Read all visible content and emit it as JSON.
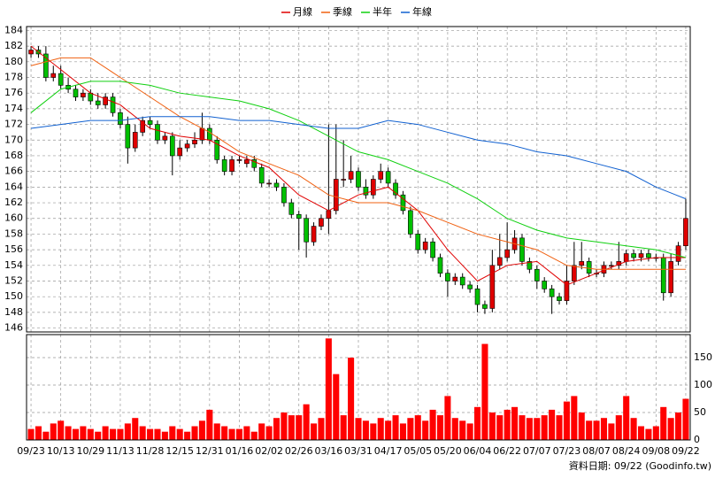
{
  "chart_data": {
    "type": "candlestick",
    "legend_position": "top",
    "xlim": [
      -0.6,
      88.6
    ],
    "xticks": [
      {
        "value": 0,
        "label": "09/23"
      },
      {
        "value": 4,
        "label": "10/13"
      },
      {
        "value": 8,
        "label": "10/29"
      },
      {
        "value": 12,
        "label": "11/13"
      },
      {
        "value": 16,
        "label": "11/28"
      },
      {
        "value": 20,
        "label": "12/15"
      },
      {
        "value": 24,
        "label": "12/31"
      },
      {
        "value": 28,
        "label": "01/16"
      },
      {
        "value": 32,
        "label": "02/02"
      },
      {
        "value": 36,
        "label": "02/26"
      },
      {
        "value": 40,
        "label": "03/16"
      },
      {
        "value": 44,
        "label": "03/31"
      },
      {
        "value": 48,
        "label": "04/17"
      },
      {
        "value": 52,
        "label": "05/05"
      },
      {
        "value": 56,
        "label": "05/20"
      },
      {
        "value": 60,
        "label": "06/04"
      },
      {
        "value": 64,
        "label": "06/22"
      },
      {
        "value": 68,
        "label": "07/07"
      },
      {
        "value": 72,
        "label": "07/23"
      },
      {
        "value": 76,
        "label": "08/07"
      },
      {
        "value": 80,
        "label": "08/24"
      },
      {
        "value": 84,
        "label": "09/08"
      },
      {
        "value": 88,
        "label": "09/22"
      }
    ],
    "ylim": [
      145.5,
      184.5
    ],
    "yticks": [
      146,
      148,
      150,
      152,
      154,
      156,
      158,
      160,
      162,
      164,
      166,
      168,
      170,
      172,
      174,
      176,
      178,
      180,
      182,
      184
    ],
    "y2lim": [
      0,
      192
    ],
    "y2ticks": [
      0,
      50,
      100,
      150
    ],
    "grid": true,
    "up_color": "#e00000",
    "down_color": "#00c000",
    "volume_color": "#ff0000",
    "open": [
      181,
      181.5,
      181,
      178,
      178.5,
      177,
      176.5,
      175.5,
      176,
      175,
      174.5,
      175.5,
      173.5,
      172,
      169,
      171,
      172.5,
      172,
      170,
      170.5,
      168,
      169,
      169.5,
      170,
      171.5,
      170,
      167.5,
      166,
      167.5,
      167,
      167.5,
      166.5,
      164.5,
      164.5,
      164,
      162,
      160.5,
      160,
      157,
      159,
      160,
      161,
      165,
      165,
      166,
      164,
      163,
      165,
      166,
      164.5,
      163,
      161,
      158,
      156,
      157,
      155,
      153,
      152,
      152.5,
      151.5,
      151,
      149,
      148.5,
      154,
      155,
      156,
      157.5,
      154.5,
      153.5,
      152,
      151,
      150,
      149.5,
      152,
      154,
      154.5,
      153,
      153,
      154,
      154,
      154.5,
      155.5,
      155,
      155.5,
      155,
      155,
      150.5,
      154.5,
      156.5
    ],
    "high": [
      182,
      182,
      182,
      179.5,
      179.5,
      178,
      177,
      176.5,
      176.5,
      176,
      176,
      176,
      174,
      173,
      172,
      173,
      173,
      172.5,
      171,
      171,
      170,
      170,
      171,
      173.5,
      172,
      170.5,
      168,
      168,
      168,
      168,
      168,
      167,
      165,
      165,
      164.5,
      162.5,
      161,
      160.5,
      159.5,
      160.5,
      172,
      172,
      170,
      168,
      166.5,
      165,
      165.5,
      167,
      166.5,
      165,
      163.5,
      161.5,
      158.5,
      157.5,
      157.5,
      155.5,
      153.5,
      153,
      153,
      152,
      151.5,
      149.5,
      156,
      158,
      159.5,
      158.5,
      158,
      155,
      154,
      152.5,
      151.5,
      150.5,
      154,
      157,
      157,
      155,
      153.5,
      154.5,
      154.5,
      157,
      156,
      156,
      156,
      156,
      155.5,
      155.5,
      155.5,
      157,
      162.5
    ],
    "low": [
      180.5,
      180.5,
      177.5,
      177.5,
      176.5,
      176,
      175,
      175,
      174.5,
      174,
      174,
      173,
      171.5,
      167,
      168.5,
      170.5,
      171.5,
      169.5,
      169.5,
      165.5,
      167.5,
      168.5,
      169,
      169.5,
      169.5,
      167,
      165.5,
      165.5,
      167,
      166.5,
      166,
      164,
      164,
      163.5,
      161.5,
      160,
      156,
      155,
      156.5,
      158.5,
      158,
      160.5,
      164,
      164.5,
      163.5,
      162.5,
      162.5,
      164.5,
      164,
      162.5,
      160.5,
      157.5,
      155.5,
      155.5,
      154.5,
      152.5,
      150,
      151.5,
      151,
      150.5,
      148,
      147.8,
      148,
      153.5,
      154.5,
      155.5,
      154,
      153,
      151,
      150.5,
      147.8,
      149,
      149,
      151.5,
      153.5,
      152.5,
      152.5,
      152.5,
      153.5,
      153.5,
      154,
      154.5,
      154.5,
      154.5,
      154.5,
      149.5,
      150,
      154,
      156
    ],
    "close": [
      181.5,
      181,
      178,
      178.5,
      177,
      176.5,
      175.5,
      176,
      175,
      174.5,
      175.5,
      173.5,
      172,
      169,
      171,
      172.5,
      172,
      170,
      170.5,
      168,
      169,
      169.5,
      170,
      171.5,
      170,
      167.5,
      166,
      167.5,
      167.5,
      167.5,
      166.5,
      164.5,
      164.5,
      164,
      162,
      160.5,
      160,
      157,
      159,
      160,
      161,
      165,
      165,
      166,
      164,
      163,
      165,
      166,
      164.5,
      163,
      161,
      158,
      156,
      157,
      155,
      153,
      152,
      152.5,
      151.5,
      151,
      149,
      148.5,
      154,
      155,
      156,
      157.5,
      154.5,
      153.5,
      152,
      151,
      150,
      149.5,
      152,
      154,
      154.5,
      153,
      153,
      154,
      154,
      154.5,
      155.5,
      155,
      155.5,
      155,
      155,
      150.5,
      154.5,
      156.5,
      160
    ],
    "volume": [
      20,
      25,
      15,
      30,
      35,
      25,
      20,
      25,
      20,
      15,
      25,
      20,
      20,
      30,
      40,
      25,
      20,
      20,
      15,
      25,
      20,
      15,
      25,
      35,
      55,
      30,
      25,
      20,
      20,
      25,
      15,
      30,
      25,
      40,
      50,
      45,
      45,
      65,
      30,
      40,
      185,
      120,
      45,
      150,
      40,
      35,
      30,
      40,
      35,
      45,
      30,
      40,
      45,
      35,
      55,
      45,
      80,
      40,
      35,
      30,
      60,
      175,
      50,
      45,
      55,
      60,
      45,
      40,
      40,
      45,
      55,
      45,
      70,
      80,
      50,
      35,
      35,
      40,
      30,
      45,
      80,
      40,
      25,
      20,
      25,
      60,
      40,
      50,
      75
    ],
    "line_x": [
      0,
      4,
      8,
      12,
      16,
      20,
      24,
      28,
      32,
      36,
      40,
      44,
      48,
      52,
      56,
      60,
      64,
      68,
      72,
      76,
      80,
      84,
      88
    ],
    "series": [
      {
        "name": "月線",
        "color": "#e00000",
        "values": [
          182,
          179,
          176,
          174.5,
          171.5,
          170.5,
          170,
          168,
          166.5,
          163,
          161,
          163,
          164,
          161,
          156,
          152,
          154,
          154.5,
          151.5,
          153,
          154.5,
          155,
          155
        ]
      },
      {
        "name": "季線",
        "color": "#f06010",
        "values": [
          179.5,
          180.5,
          180.5,
          178,
          175.5,
          173,
          171,
          168.5,
          167,
          165.5,
          163,
          162,
          162,
          161,
          159.5,
          158,
          157,
          156,
          154,
          153.5,
          153.5,
          153.5,
          153.5
        ]
      },
      {
        "name": "半年",
        "color": "#10d010",
        "values": [
          173.5,
          176.5,
          177.5,
          177.5,
          177,
          176,
          175.5,
          175,
          174,
          172.5,
          170.5,
          168.5,
          167.5,
          166,
          164.5,
          162.5,
          160,
          158.5,
          157.5,
          157,
          156.5,
          156,
          155
        ]
      },
      {
        "name": "年線",
        "color": "#1060d0",
        "values": [
          171.5,
          172,
          172.5,
          172.5,
          173,
          173,
          173,
          172.5,
          172.5,
          172,
          171.5,
          171.5,
          172.5,
          172,
          171,
          170,
          169.5,
          168.5,
          168,
          167,
          166,
          164,
          162.5
        ]
      }
    ],
    "footer": "資料日期: 09/22 (Goodinfo.tw)"
  }
}
